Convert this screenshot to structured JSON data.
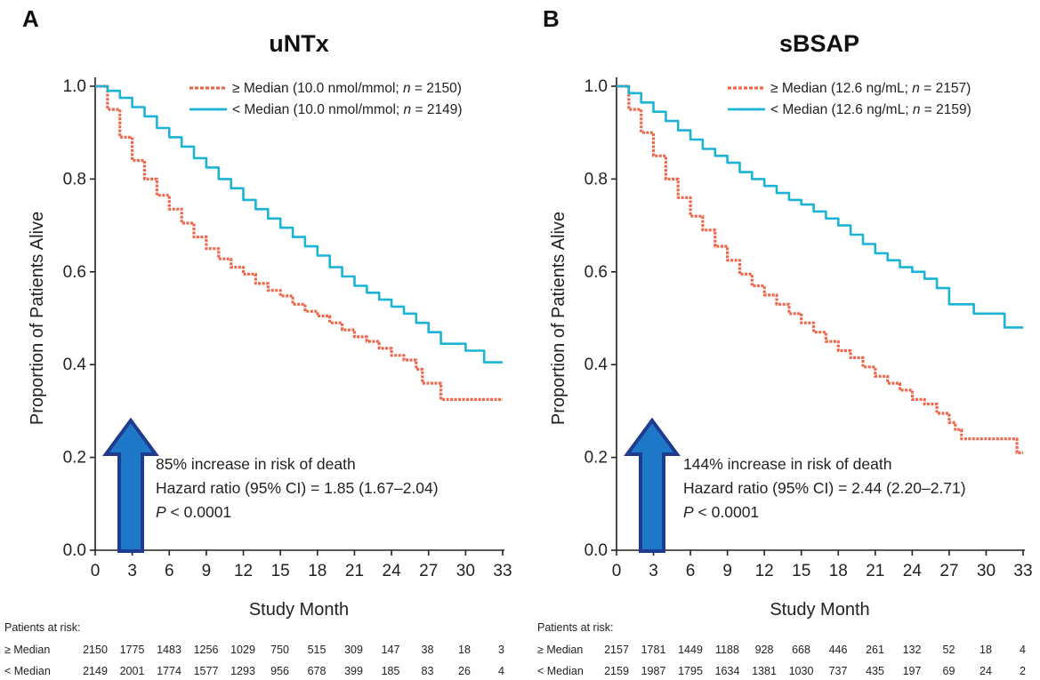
{
  "colors": {
    "above_median": "#f0664b",
    "below_median": "#1bb3d6",
    "arrow_fill": "#1f77c8",
    "arrow_stroke": "#1d3c8f"
  },
  "chart_data": [
    {
      "type": "line",
      "panel": "A",
      "title": "uNTx",
      "xlabel": "Study Month",
      "ylabel": "Proportion of Patients Alive",
      "xlim": [
        0,
        33
      ],
      "ylim": [
        0,
        1.0
      ],
      "xticks": [
        "0",
        "3",
        "6",
        "9",
        "12",
        "15",
        "18",
        "21",
        "24",
        "27",
        "30",
        "33"
      ],
      "yticks": [
        "0.0",
        "0.2",
        "0.4",
        "0.6",
        "0.8",
        "1.0"
      ],
      "legend_position": "top-right",
      "grid": false,
      "series": [
        {
          "key": "above",
          "name_prefix": "≥ Median (10.0 nmol/mmol; ",
          "name_n": "n",
          "name_suffix": " = 2150)",
          "style": "dashed",
          "x": [
            0,
            1,
            2,
            3,
            4,
            5,
            6,
            7,
            8,
            9,
            10,
            11,
            12,
            13,
            14,
            15,
            16,
            17,
            18,
            19,
            20,
            21,
            22,
            23,
            24,
            25,
            26,
            26.5,
            27,
            27.5,
            28,
            30,
            33
          ],
          "y": [
            1.0,
            0.95,
            0.89,
            0.84,
            0.8,
            0.765,
            0.735,
            0.705,
            0.675,
            0.65,
            0.628,
            0.61,
            0.595,
            0.575,
            0.56,
            0.548,
            0.53,
            0.515,
            0.505,
            0.49,
            0.475,
            0.46,
            0.45,
            0.435,
            0.42,
            0.41,
            0.39,
            0.36,
            0.36,
            0.36,
            0.325,
            0.325,
            0.325
          ]
        },
        {
          "key": "below",
          "name_prefix": "< Median (10.0 nmol/mmol; ",
          "name_n": "n",
          "name_suffix": " = 2149)",
          "style": "solid",
          "x": [
            0,
            1,
            2,
            3,
            4,
            5,
            6,
            7,
            8,
            9,
            10,
            11,
            12,
            13,
            14,
            15,
            16,
            17,
            18,
            19,
            20,
            21,
            22,
            23,
            24,
            25,
            26,
            27,
            28,
            29,
            30,
            31,
            31.5,
            33
          ],
          "y": [
            1.0,
            0.99,
            0.975,
            0.955,
            0.935,
            0.91,
            0.89,
            0.87,
            0.845,
            0.825,
            0.8,
            0.78,
            0.755,
            0.735,
            0.715,
            0.695,
            0.675,
            0.655,
            0.635,
            0.61,
            0.59,
            0.57,
            0.555,
            0.54,
            0.525,
            0.51,
            0.49,
            0.47,
            0.445,
            0.445,
            0.43,
            0.43,
            0.405,
            0.405
          ]
        }
      ],
      "annotation": {
        "line1": "85% increase in risk of death",
        "line2": "Hazard ratio (95% CI) = 1.85 (1.67–2.04)",
        "p_symbol": "P",
        "p_rest": " < 0.0001"
      },
      "at_risk": {
        "header": "Patients at risk:",
        "rows": [
          {
            "label": "≥ Median",
            "values": [
              "2150",
              "1775",
              "1483",
              "1256",
              "1029",
              "750",
              "515",
              "309",
              "147",
              "38",
              "18",
              "3"
            ]
          },
          {
            "label": "< Median",
            "values": [
              "2149",
              "2001",
              "1774",
              "1577",
              "1293",
              "956",
              "678",
              "399",
              "185",
              "83",
              "26",
              "4"
            ]
          }
        ]
      }
    },
    {
      "type": "line",
      "panel": "B",
      "title": "sBSAP",
      "xlabel": "Study Month",
      "ylabel": "Proportion of Patients Alive",
      "xlim": [
        0,
        33
      ],
      "ylim": [
        0,
        1.0
      ],
      "xticks": [
        "0",
        "3",
        "6",
        "9",
        "12",
        "15",
        "18",
        "21",
        "24",
        "27",
        "30",
        "33"
      ],
      "yticks": [
        "0.0",
        "0.2",
        "0.4",
        "0.6",
        "0.8",
        "1.0"
      ],
      "legend_position": "top-right",
      "grid": false,
      "series": [
        {
          "key": "above",
          "name_prefix": "≥ Median (12.6 ng/mL; ",
          "name_n": "n",
          "name_suffix": " = 2157)",
          "style": "dashed",
          "x": [
            0,
            1,
            2,
            3,
            4,
            5,
            6,
            7,
            8,
            9,
            10,
            11,
            12,
            13,
            14,
            15,
            16,
            17,
            18,
            19,
            20,
            21,
            22,
            23,
            24,
            25,
            26,
            27,
            27.5,
            28,
            30,
            32,
            32.5,
            33
          ],
          "y": [
            1.0,
            0.95,
            0.9,
            0.85,
            0.8,
            0.76,
            0.72,
            0.69,
            0.655,
            0.625,
            0.595,
            0.57,
            0.55,
            0.53,
            0.51,
            0.49,
            0.47,
            0.45,
            0.43,
            0.415,
            0.395,
            0.375,
            0.36,
            0.345,
            0.325,
            0.315,
            0.295,
            0.275,
            0.26,
            0.24,
            0.24,
            0.24,
            0.21,
            0.21
          ]
        },
        {
          "key": "below",
          "name_prefix": "< Median (12.6 ng/mL; ",
          "name_n": "n",
          "name_suffix": " = 2159)",
          "style": "solid",
          "x": [
            0,
            1,
            2,
            3,
            4,
            5,
            6,
            7,
            8,
            9,
            10,
            11,
            12,
            13,
            14,
            15,
            16,
            17,
            18,
            19,
            20,
            21,
            22,
            23,
            24,
            25,
            26,
            27,
            28,
            29,
            30,
            31,
            31.5,
            33
          ],
          "y": [
            1.0,
            0.985,
            0.965,
            0.945,
            0.925,
            0.905,
            0.885,
            0.865,
            0.85,
            0.835,
            0.815,
            0.8,
            0.785,
            0.77,
            0.755,
            0.745,
            0.73,
            0.715,
            0.7,
            0.68,
            0.66,
            0.64,
            0.625,
            0.61,
            0.6,
            0.585,
            0.565,
            0.53,
            0.53,
            0.51,
            0.51,
            0.51,
            0.48,
            0.48
          ]
        }
      ],
      "annotation": {
        "line1": "144% increase in risk of death",
        "line2": "Hazard ratio (95% CI) = 2.44 (2.20–2.71)",
        "p_symbol": "P",
        "p_rest": " < 0.0001"
      },
      "at_risk": {
        "header": "Patients at risk:",
        "rows": [
          {
            "label": "≥ Median",
            "values": [
              "2157",
              "1781",
              "1449",
              "1188",
              "928",
              "668",
              "446",
              "261",
              "132",
              "52",
              "18",
              "4"
            ]
          },
          {
            "label": "< Median",
            "values": [
              "2159",
              "1987",
              "1795",
              "1634",
              "1381",
              "1030",
              "737",
              "435",
              "197",
              "69",
              "24",
              "2"
            ]
          }
        ]
      }
    }
  ]
}
